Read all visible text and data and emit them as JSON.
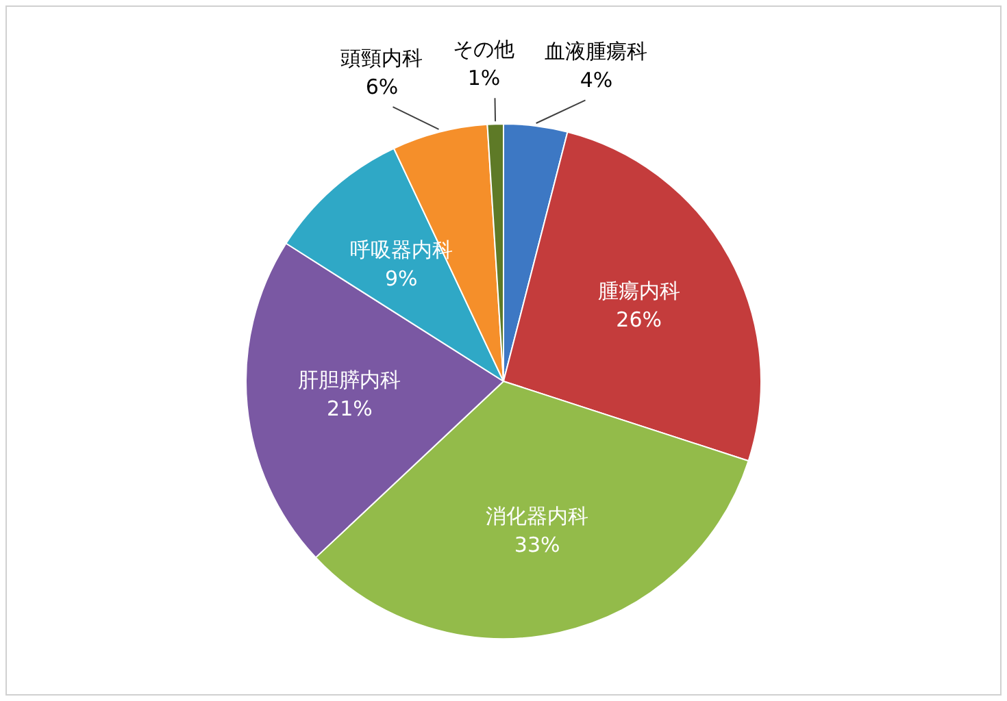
{
  "chart_data": {
    "type": "pie",
    "categories": [
      "血液腫瘍科",
      "腫瘍内科",
      "消化器内科",
      "肝胆膵内科",
      "呼吸器内科",
      "頭頸内科",
      "その他"
    ],
    "values": [
      4,
      26,
      33,
      21,
      9,
      6,
      1
    ],
    "colors": [
      "#3d78c4",
      "#c43c3c",
      "#93bb4a",
      "#7a58a3",
      "#2fa8c6",
      "#f58f2a",
      "#5e7a27"
    ],
    "value_labels": [
      "4%",
      "26%",
      "33%",
      "21%",
      "9%",
      "6%",
      "1%"
    ],
    "legend": false
  }
}
